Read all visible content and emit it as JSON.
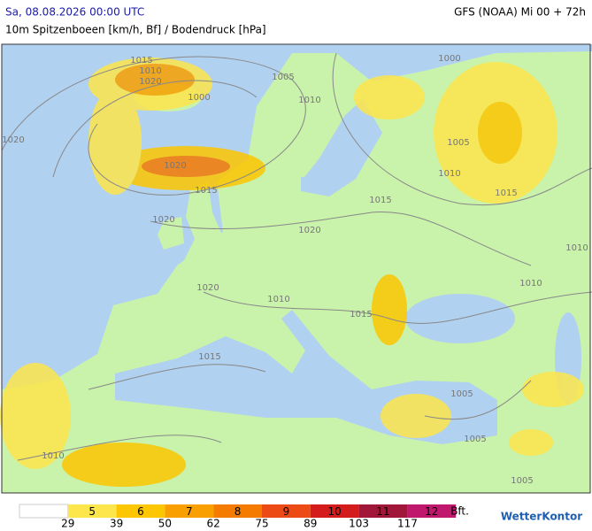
{
  "header": {
    "datetime": "Sa, 08.08.2026 00:00 UTC",
    "model": "GFS (NOAA) Mi 00 + 72h",
    "subtitle": "10m Spitzenboeen [km/h, Bf] / Bodendruck [hPa]"
  },
  "isobar_labels": [
    "1015",
    "1010",
    "1020",
    "1000",
    "1005",
    "1000",
    "1020",
    "1010",
    "1005",
    "1010",
    "1015",
    "1020",
    "1015",
    "1020",
    "1015",
    "1020",
    "1020",
    "1010",
    "1015",
    "1010",
    "1010",
    "1015",
    "1005",
    "1005",
    "1010",
    "1005"
  ],
  "legend": {
    "base_color": "#ffffff",
    "levels": [
      {
        "bft": "5",
        "color": "#fde64b"
      },
      {
        "bft": "6",
        "color": "#fcc600"
      },
      {
        "bft": "7",
        "color": "#f9a000"
      },
      {
        "bft": "8",
        "color": "#f47a00"
      },
      {
        "bft": "9",
        "color": "#ec4b16"
      },
      {
        "bft": "10",
        "color": "#d51c1c"
      },
      {
        "bft": "11",
        "color": "#a0173a"
      },
      {
        "bft": "12",
        "color": "#c0186c"
      }
    ],
    "thresholds": [
      "29",
      "39",
      "50",
      "62",
      "75",
      "89",
      "103",
      "117"
    ],
    "unit": "Bft."
  },
  "brand": "WetterKontor"
}
